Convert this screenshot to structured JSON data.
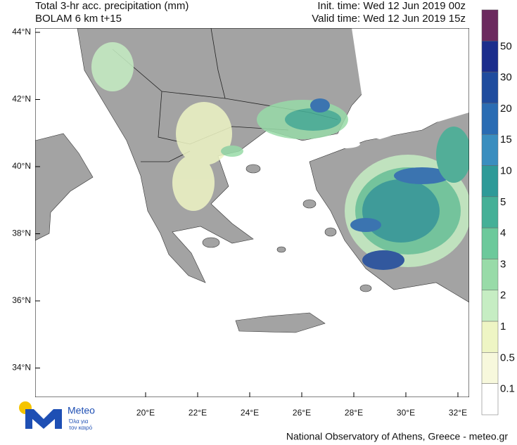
{
  "header": {
    "title": "Total 3-hr acc. precipitation (mm)",
    "model": "BOLAM 6 km t+15",
    "init_time": "Init. time: Wed 12 Jun 2019 00z",
    "valid_time": "Valid time: Wed 12 Jun 2019 15z"
  },
  "map": {
    "lon_ticks": [
      {
        "value": 20,
        "label": "20°E"
      },
      {
        "value": 22,
        "label": "22°E"
      },
      {
        "value": 24,
        "label": "24°E"
      },
      {
        "value": 26,
        "label": "26°E"
      },
      {
        "value": 28,
        "label": "28°E"
      },
      {
        "value": 30,
        "label": "30°E"
      },
      {
        "value": 32,
        "label": "32°E"
      }
    ],
    "lat_ticks": [
      {
        "value": 44,
        "label": "44°N"
      },
      {
        "value": 42,
        "label": "42°N"
      },
      {
        "value": 40,
        "label": "40°N"
      },
      {
        "value": 38,
        "label": "38°N"
      },
      {
        "value": 36,
        "label": "36°N"
      },
      {
        "value": 34,
        "label": "34°N"
      }
    ]
  },
  "colorbar": {
    "levels": [
      50,
      30,
      20,
      15,
      10,
      5,
      4,
      3,
      2,
      1,
      0.5,
      0.1
    ],
    "colors": [
      "#6b2a5e",
      "#1b2d8c",
      "#1f4c9e",
      "#2a6cb3",
      "#3a8ebf",
      "#2e9a98",
      "#45b097",
      "#6cc99b",
      "#98dba8",
      "#c6edc3",
      "#eef5c4",
      "#f7f8dc",
      "#ffffff"
    ]
  },
  "logo": {
    "name": "Meteo",
    "slogan_1": "Όλα για",
    "slogan_2": "τον καιρό"
  },
  "footer": "National Observatory of Athens, Greece - meteo.gr"
}
